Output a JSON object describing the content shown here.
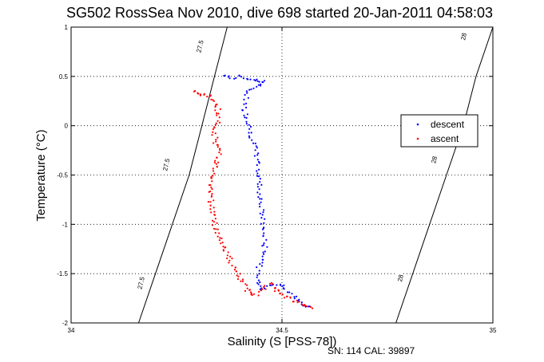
{
  "chart_data": {
    "type": "scatter",
    "title": "SG502 RossSea Nov 2010, dive 698 started 20-Jan-2011 04:58:03",
    "xlabel": "Salinity (S [PSS-78])",
    "ylabel": "Temperature (°C)",
    "xlim": [
      34,
      35
    ],
    "ylim": [
      -2,
      1
    ],
    "x_ticks": [
      "34",
      "34.5",
      "35"
    ],
    "y_ticks": [
      "1",
      "0.5",
      "0",
      "-0.5",
      "-1",
      "-1.5",
      "-2"
    ],
    "grid": true,
    "legend_position": "right",
    "footnote": "SN: 114  CAL: 39897",
    "contours": [
      {
        "label": "27.5",
        "points": [
          [
            34.16,
            -2
          ],
          [
            34.2,
            -1.5
          ],
          [
            34.24,
            -1.0
          ],
          [
            34.28,
            -0.5
          ],
          [
            34.31,
            0.0
          ],
          [
            34.34,
            0.5
          ],
          [
            34.37,
            1.0
          ]
        ]
      },
      {
        "label": "28",
        "points": [
          [
            34.77,
            -2
          ],
          [
            34.81,
            -1.5
          ],
          [
            34.85,
            -1.0
          ],
          [
            34.89,
            -0.5
          ],
          [
            34.93,
            0.0
          ],
          [
            34.96,
            0.5
          ],
          [
            35.0,
            1.0
          ]
        ]
      }
    ],
    "contour_label_positions": [
      {
        "label": "27.5",
        "x": 34.305,
        "y": 0.8
      },
      {
        "label": "27.5",
        "x": 34.225,
        "y": -0.4
      },
      {
        "label": "27.5",
        "x": 34.165,
        "y": -1.6
      },
      {
        "label": "28",
        "x": 34.93,
        "y": 0.9
      },
      {
        "label": "28",
        "x": 34.86,
        "y": -0.35
      },
      {
        "label": "28",
        "x": 34.78,
        "y": -1.55
      }
    ],
    "series": [
      {
        "name": "descent",
        "color": "#0000ff",
        "path": [
          [
            34.36,
            0.52
          ],
          [
            34.38,
            0.48
          ],
          [
            34.4,
            0.5
          ],
          [
            34.43,
            0.47
          ],
          [
            34.46,
            0.45
          ],
          [
            34.42,
            0.35
          ],
          [
            34.41,
            0.18
          ],
          [
            34.42,
            0.05
          ],
          [
            34.43,
            -0.15
          ],
          [
            34.44,
            -0.3
          ],
          [
            34.445,
            -0.5
          ],
          [
            34.45,
            -0.8
          ],
          [
            34.455,
            -1.0
          ],
          [
            34.46,
            -1.3
          ],
          [
            34.44,
            -1.5
          ],
          [
            34.45,
            -1.65
          ],
          [
            34.5,
            -1.6
          ],
          [
            34.52,
            -1.7
          ],
          [
            34.55,
            -1.82
          ],
          [
            34.57,
            -1.85
          ]
        ],
        "jitter": 0.006,
        "count": 150
      },
      {
        "name": "ascent",
        "color": "#ff0000",
        "path": [
          [
            34.29,
            0.35
          ],
          [
            34.33,
            0.3
          ],
          [
            34.35,
            0.15
          ],
          [
            34.34,
            -0.1
          ],
          [
            34.35,
            -0.3
          ],
          [
            34.34,
            -0.45
          ],
          [
            34.33,
            -0.7
          ],
          [
            34.34,
            -1.0
          ],
          [
            34.36,
            -1.2
          ],
          [
            34.38,
            -1.4
          ],
          [
            34.4,
            -1.55
          ],
          [
            34.42,
            -1.68
          ],
          [
            34.44,
            -1.72
          ],
          [
            34.47,
            -1.6
          ],
          [
            34.49,
            -1.68
          ],
          [
            34.53,
            -1.78
          ],
          [
            34.57,
            -1.85
          ]
        ],
        "jitter": 0.007,
        "count": 170
      }
    ]
  }
}
